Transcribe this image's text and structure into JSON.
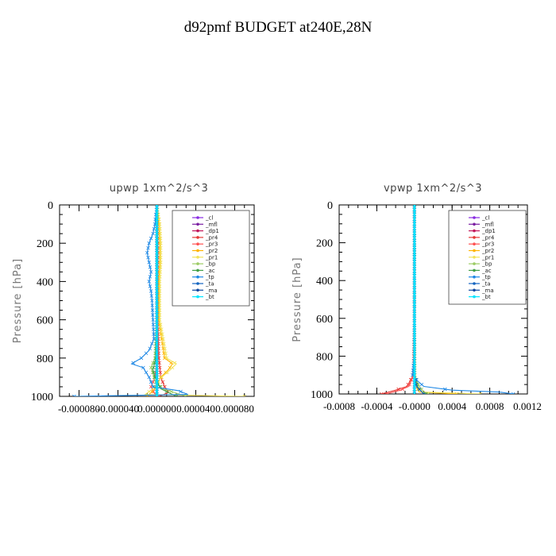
{
  "title": "d92pmf  BUDGET at240E,28N",
  "legend_entries": [
    "_cl",
    "_mfl",
    "_dp1",
    "_pr4",
    "_pr3",
    "_pr2",
    "_pr1",
    "_bp",
    "_ac",
    "_tp",
    "_ta",
    "_ma",
    "_bt"
  ],
  "legend_colors": [
    "#8a2be2",
    "#7b1fa2",
    "#c2185b",
    "#e53935",
    "#ff5252",
    "#ffb300",
    "#f2e35a",
    "#9ccc65",
    "#43a047",
    "#1e88e5",
    "#1565c0",
    "#0d47a1",
    "#00e5ff"
  ],
  "chart_data": [
    {
      "type": "line",
      "title": "upwp    1xm^2/s^3",
      "ylabel": "Pressure  [hPa]",
      "xlabel": "",
      "ylim": [
        1000,
        0
      ],
      "xlim": [
        -0.0001,
        0.0001
      ],
      "y_ticks": [
        0,
        200,
        400,
        600,
        800,
        1000
      ],
      "y_tick_labels": [
        "0",
        "200",
        "400",
        "600",
        "800",
        "1000"
      ],
      "x_ticks": [
        -8e-05,
        -4e-05,
        0,
        4e-05,
        8e-05
      ],
      "x_tick_labels": [
        "-0.000080",
        "-0.000040",
        "0.000000",
        "0.000040",
        "0.000080"
      ],
      "legend": "top-right",
      "series": [
        {
          "name": "_cl",
          "p": [
            0,
            1000
          ],
          "v": [
            0,
            0
          ]
        },
        {
          "name": "_mfl",
          "p": [
            0,
            1000
          ],
          "v": [
            0,
            0
          ]
        },
        {
          "name": "_dp1",
          "p": [
            0,
            1000
          ],
          "v": [
            0,
            0
          ]
        },
        {
          "name": "_pr4",
          "p": [
            0,
            200,
            400,
            600,
            800,
            900,
            950,
            980,
            1000
          ],
          "v": [
            0,
            1e-06,
            1e-06,
            1e-06,
            2e-06,
            4e-06,
            8e-06,
            1.2e-05,
            2e-06
          ]
        },
        {
          "name": "_pr3",
          "p": [
            0,
            200,
            400,
            600,
            800,
            900,
            950,
            980,
            1000
          ],
          "v": [
            0,
            0,
            1e-06,
            1e-06,
            1e-06,
            -2e-06,
            -6e-06,
            -3e-06,
            0
          ]
        },
        {
          "name": "_pr2",
          "p": [
            0,
            100,
            200,
            300,
            400,
            600,
            800,
            830,
            860,
            900,
            960,
            1000
          ],
          "v": [
            0,
            2e-06,
            3e-06,
            3e-06,
            2e-06,
            2e-06,
            8e-06,
            1.6e-05,
            1.2e-05,
            4e-06,
            -2e-06,
            -1e-05
          ]
        },
        {
          "name": "_pr1",
          "p": [
            0,
            100,
            200,
            300,
            400,
            600,
            800,
            830,
            860,
            900,
            960,
            990,
            1000
          ],
          "v": [
            0,
            3e-06,
            4e-06,
            4e-06,
            3e-06,
            3e-06,
            1e-05,
            2e-05,
            1.4e-05,
            5e-06,
            -4e-06,
            -1.2e-05,
            9e-05
          ]
        },
        {
          "name": "_bp",
          "p": [
            0,
            200,
            400,
            600,
            800,
            850,
            880,
            920,
            960,
            1000
          ],
          "v": [
            0,
            0,
            0,
            0,
            -2e-06,
            -6e-06,
            -4e-06,
            -2e-06,
            6e-06,
            3e-05
          ]
        },
        {
          "name": "_ac",
          "p": [
            0,
            200,
            400,
            600,
            800,
            860,
            900,
            960,
            1000
          ],
          "v": [
            0,
            0,
            0,
            0,
            -1e-06,
            -4e-06,
            -2e-06,
            4e-06,
            2e-05
          ]
        },
        {
          "name": "_tp",
          "p": [
            0,
            100,
            150,
            200,
            250,
            300,
            350,
            400,
            450,
            500,
            600,
            700,
            760,
            800,
            830,
            850,
            900,
            950,
            970,
            990,
            1000
          ],
          "v": [
            0,
            -2e-06,
            -4e-06,
            -8e-06,
            -1e-05,
            -8e-06,
            -6e-06,
            -8e-06,
            -6e-06,
            -5e-06,
            -4e-06,
            -3e-06,
            -8e-06,
            -1.6e-05,
            -2.6e-05,
            -1.4e-05,
            -8e-06,
            -4e-06,
            2.2e-05,
            3.2e-05,
            -8.5e-05
          ]
        },
        {
          "name": "_ta",
          "p": [
            0,
            200,
            400,
            600,
            800,
            900,
            1000
          ],
          "v": [
            0,
            0,
            0,
            0,
            0,
            0,
            0
          ]
        },
        {
          "name": "_ma",
          "p": [
            0,
            1000
          ],
          "v": [
            0,
            0
          ]
        },
        {
          "name": "_bt",
          "p": [
            0,
            1000
          ],
          "v": [
            0,
            0
          ]
        }
      ]
    },
    {
      "type": "line",
      "title": "vpwp    1xm^2/s^3",
      "ylabel": "Pressure  [hPa]",
      "xlabel": "",
      "ylim": [
        1000,
        0
      ],
      "xlim": [
        -0.0008,
        0.0012
      ],
      "y_ticks": [
        0,
        200,
        400,
        600,
        800,
        1000
      ],
      "y_tick_labels": [
        "0",
        "200",
        "400",
        "600",
        "800",
        "1000"
      ],
      "x_ticks": [
        -0.0008,
        -0.0004,
        0,
        0.0004,
        0.0008,
        0.0012
      ],
      "x_tick_labels": [
        "-0.0008",
        "-0.0004",
        "-0.0000",
        "0.0004",
        "0.0008",
        "0.0012"
      ],
      "legend": "top-right",
      "series": [
        {
          "name": "_cl",
          "p": [
            0,
            1000
          ],
          "v": [
            0,
            0
          ]
        },
        {
          "name": "_mfl",
          "p": [
            0,
            1000
          ],
          "v": [
            0,
            0
          ]
        },
        {
          "name": "_dp1",
          "p": [
            0,
            1000
          ],
          "v": [
            0,
            0
          ]
        },
        {
          "name": "_pr4",
          "p": [
            0,
            600,
            900,
            960,
            980,
            1000
          ],
          "v": [
            0,
            0,
            -1e-05,
            -8e-05,
            -0.0002,
            -0.00035
          ]
        },
        {
          "name": "_pr3",
          "p": [
            0,
            600,
            900,
            960,
            980,
            1000
          ],
          "v": [
            0,
            0,
            -1e-05,
            -6e-05,
            -0.00015,
            -0.0003
          ]
        },
        {
          "name": "_pr2",
          "p": [
            0,
            600,
            900,
            960,
            990,
            1000
          ],
          "v": [
            0,
            0,
            5e-06,
            2e-05,
            5e-05,
            0.00045
          ]
        },
        {
          "name": "_pr1",
          "p": [
            0,
            600,
            900,
            960,
            990,
            1000
          ],
          "v": [
            0,
            0,
            5e-06,
            3e-05,
            8e-05,
            0.0007
          ]
        },
        {
          "name": "_bp",
          "p": [
            0,
            600,
            900,
            960,
            990,
            1000
          ],
          "v": [
            0,
            0,
            0,
            5e-05,
            0.0001,
            0.00015
          ]
        },
        {
          "name": "_ac",
          "p": [
            0,
            600,
            900,
            960,
            990,
            1000
          ],
          "v": [
            0,
            0,
            0,
            3e-05,
            8e-05,
            0.00012
          ]
        },
        {
          "name": "_tp",
          "p": [
            0,
            800,
            900,
            930,
            960,
            980,
            990,
            1000
          ],
          "v": [
            0,
            0,
            -2e-05,
            3e-05,
            0.0001,
            0.0004,
            0.0009,
            0.00105
          ]
        },
        {
          "name": "_ta",
          "p": [
            0,
            800,
            900,
            960,
            1000
          ],
          "v": [
            0,
            0,
            0,
            2e-05,
            0.0001
          ]
        },
        {
          "name": "_ma",
          "p": [
            0,
            1000
          ],
          "v": [
            0,
            0
          ]
        },
        {
          "name": "_bt",
          "p": [
            0,
            1000
          ],
          "v": [
            0,
            0
          ]
        }
      ]
    }
  ]
}
